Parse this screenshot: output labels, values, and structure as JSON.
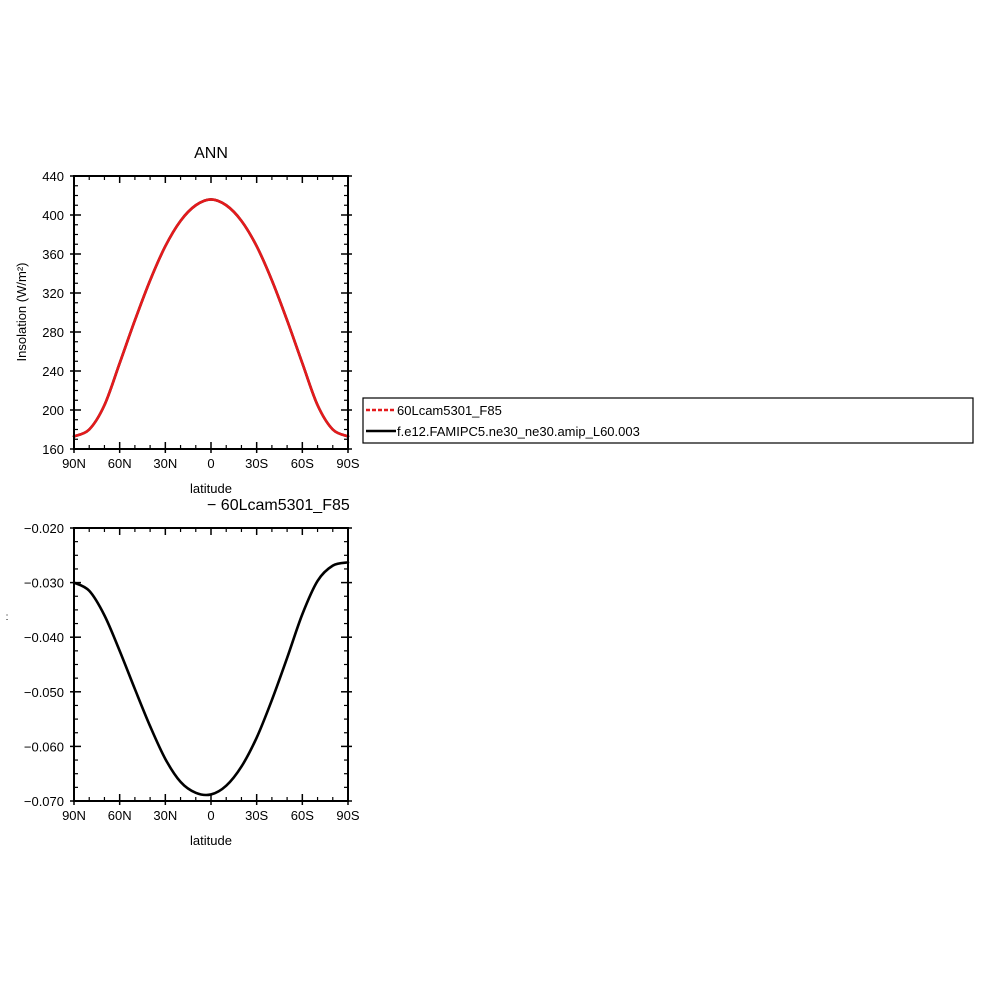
{
  "chart_data": [
    {
      "type": "line",
      "title": "ANN",
      "xlabel": "latitude",
      "ylabel": "Insolation (W/m²)",
      "xlim": [
        90,
        -90
      ],
      "ylim": [
        160,
        440
      ],
      "x_ticks": [
        {
          "value": 90,
          "label": "90N"
        },
        {
          "value": 60,
          "label": "60N"
        },
        {
          "value": 30,
          "label": "30N"
        },
        {
          "value": 0,
          "label": "0"
        },
        {
          "value": -30,
          "label": "30S"
        },
        {
          "value": -60,
          "label": "60S"
        },
        {
          "value": -90,
          "label": "90S"
        }
      ],
      "y_ticks": [
        {
          "value": 160,
          "label": "160"
        },
        {
          "value": 200,
          "label": "200"
        },
        {
          "value": 240,
          "label": "240"
        },
        {
          "value": 280,
          "label": "280"
        },
        {
          "value": 320,
          "label": "320"
        },
        {
          "value": 360,
          "label": "360"
        },
        {
          "value": 400,
          "label": "400"
        },
        {
          "value": 440,
          "label": "440"
        }
      ],
      "series": [
        {
          "name": "f.e12.FAMIPC5.ne30_ne30.amip_L60.003",
          "color": "#000000",
          "x": [
            90,
            80,
            70,
            60,
            50,
            40,
            30,
            20,
            10,
            0,
            -10,
            -20,
            -30,
            -40,
            -50,
            -60,
            -70,
            -80,
            -90
          ],
          "values": [
            173,
            180,
            205,
            248,
            292,
            333,
            368,
            394,
            410,
            416,
            410,
            394,
            368,
            333,
            292,
            248,
            205,
            180,
            173
          ]
        },
        {
          "name": "60Lcam5301_F85",
          "color": "#e41a1c",
          "dashed": true,
          "x": [
            90,
            80,
            70,
            60,
            50,
            40,
            30,
            20,
            10,
            0,
            -10,
            -20,
            -30,
            -40,
            -50,
            -60,
            -70,
            -80,
            -90
          ],
          "values": [
            173,
            180,
            205,
            248,
            292,
            333,
            368,
            394,
            410,
            416,
            410,
            394,
            368,
            333,
            292,
            248,
            205,
            180,
            173
          ]
        }
      ],
      "legend": {
        "position": "right",
        "entries": [
          {
            "label": "60Lcam5301_F85",
            "color": "#e41a1c",
            "dashed": true
          },
          {
            "label": "f.e12.FAMIPC5.ne30_ne30.amip_L60.003",
            "color": "#000000",
            "dashed": false
          }
        ]
      }
    },
    {
      "type": "line",
      "title": "− 60Lcam5301_F85",
      "xlabel": "latitude",
      "ylabel": ":",
      "xlim": [
        90,
        -90
      ],
      "ylim": [
        -0.07,
        -0.02
      ],
      "x_ticks": [
        {
          "value": 90,
          "label": "90N"
        },
        {
          "value": 60,
          "label": "60N"
        },
        {
          "value": 30,
          "label": "30N"
        },
        {
          "value": 0,
          "label": "0"
        },
        {
          "value": -30,
          "label": "30S"
        },
        {
          "value": -60,
          "label": "60S"
        },
        {
          "value": -90,
          "label": "90S"
        }
      ],
      "y_ticks": [
        {
          "value": -0.07,
          "label": "−0.070"
        },
        {
          "value": -0.06,
          "label": "−0.060"
        },
        {
          "value": -0.05,
          "label": "−0.050"
        },
        {
          "value": -0.04,
          "label": "−0.040"
        },
        {
          "value": -0.03,
          "label": "−0.030"
        },
        {
          "value": -0.02,
          "label": "−0.020"
        }
      ],
      "series": [
        {
          "color": "#000000",
          "x": [
            90,
            80,
            70,
            60,
            50,
            40,
            30,
            20,
            10,
            0,
            -10,
            -20,
            -30,
            -40,
            -50,
            -60,
            -70,
            -80,
            -90
          ],
          "values": [
            -0.03,
            -0.0315,
            -0.036,
            -0.0425,
            -0.0495,
            -0.0563,
            -0.0623,
            -0.0665,
            -0.0685,
            -0.0688,
            -0.0672,
            -0.0637,
            -0.0584,
            -0.0515,
            -0.0438,
            -0.0358,
            -0.0297,
            -0.0269,
            -0.0263
          ]
        }
      ]
    }
  ]
}
